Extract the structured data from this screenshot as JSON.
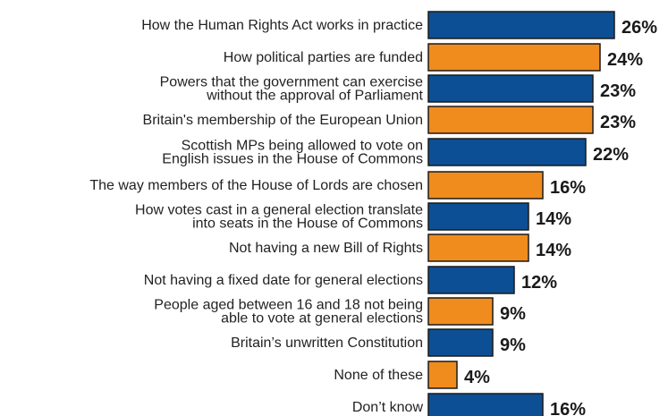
{
  "chart_data": {
    "type": "bar",
    "orientation": "horizontal",
    "categories": [
      "How the Human Rights Act works in practice",
      "How political parties are funded",
      "Powers that the government can exercise\nwithout the approval of Parliament",
      "Britain's membership of the European Union",
      "Scottish MPs being allowed to vote on\nEnglish issues in the House of Commons",
      "The way members of the House of Lords are chosen",
      "How votes cast in a general election translate\ninto seats in the House of Commons",
      "Not having a new Bill of Rights",
      "Not having a fixed date for general elections",
      "People aged between 16 and 18 not being\nable to vote at general elections",
      "Britain’s unwritten Constitution",
      "None of these",
      "Don’t know"
    ],
    "values": [
      26,
      24,
      23,
      23,
      22,
      16,
      14,
      14,
      12,
      9,
      9,
      4,
      16
    ],
    "value_labels": [
      "26%",
      "24%",
      "23%",
      "23%",
      "22%",
      "16%",
      "14%",
      "14%",
      "12%",
      "9%",
      "9%",
      "4%",
      "16%"
    ],
    "colors": [
      "#0d4f94",
      "#f08c1e",
      "#0d4f94",
      "#f08c1e",
      "#0d4f94",
      "#f08c1e",
      "#0d4f94",
      "#f08c1e",
      "#0d4f94",
      "#f08c1e",
      "#0d4f94",
      "#f08c1e",
      "#0d4f94"
    ],
    "title": "",
    "xlabel": "",
    "ylabel": "",
    "xlim": [
      0,
      26
    ],
    "grid": false,
    "legend": "none"
  }
}
